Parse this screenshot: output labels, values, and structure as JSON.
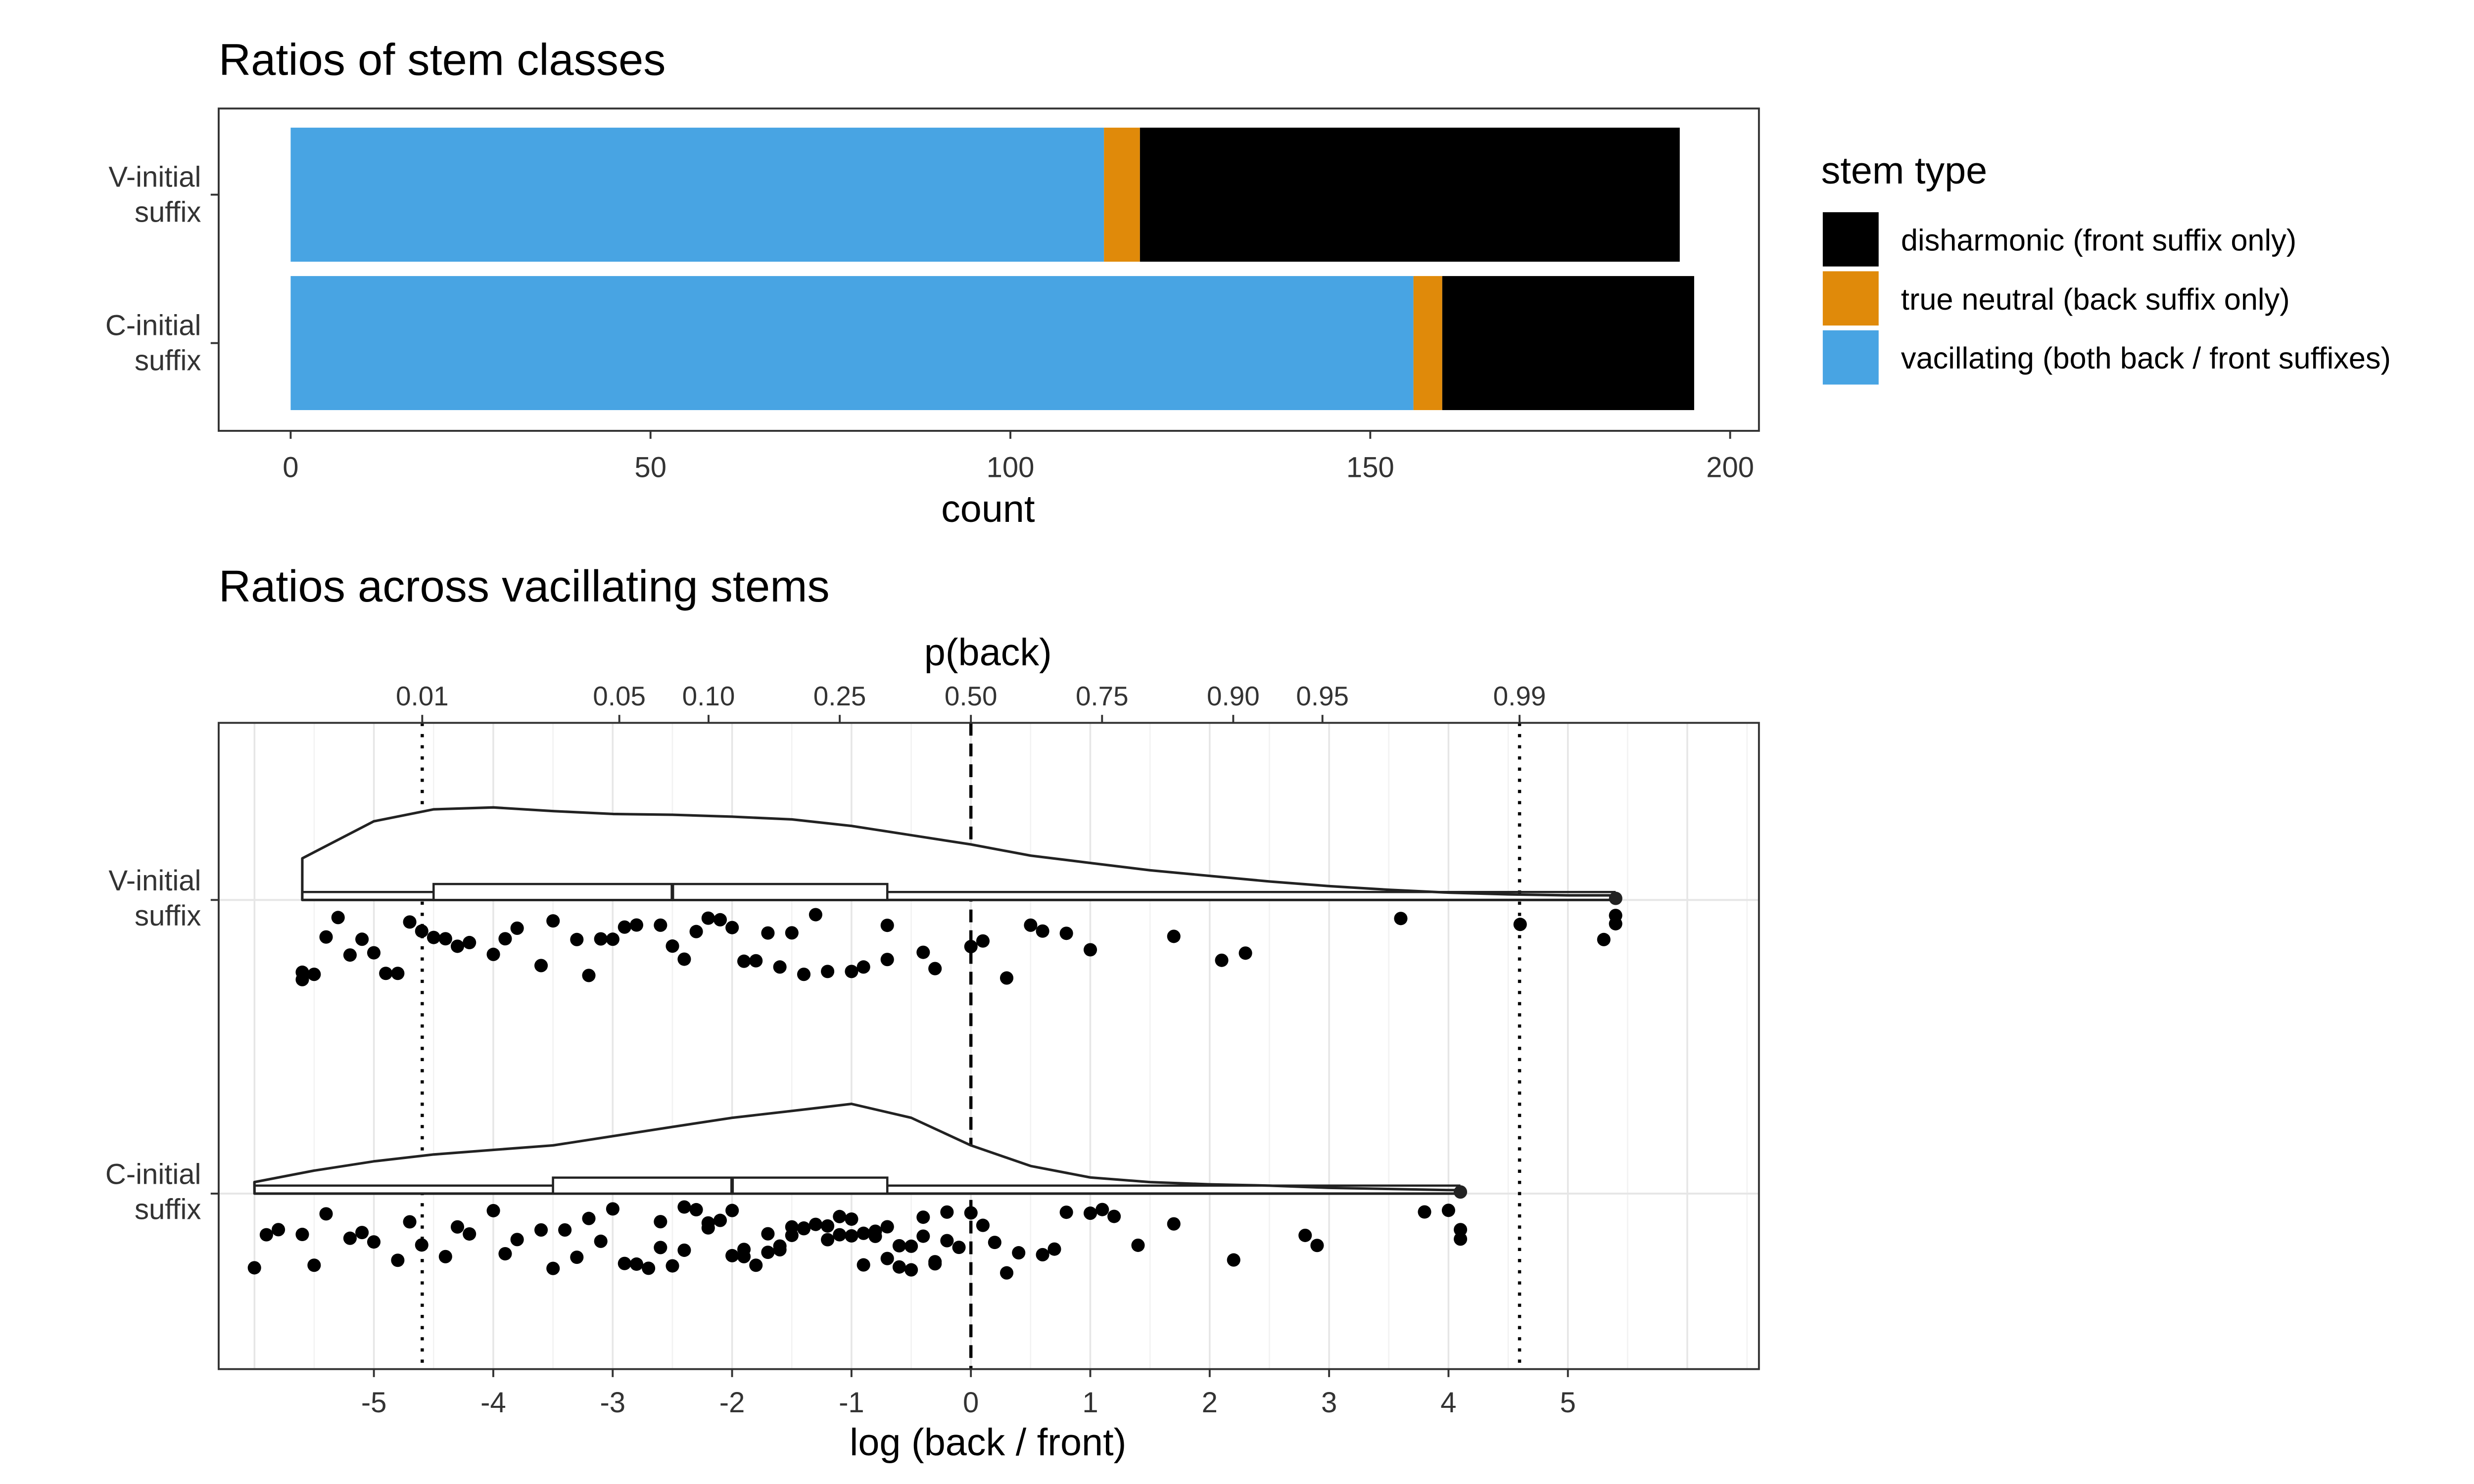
{
  "chart_data": [
    {
      "type": "bar",
      "orientation": "horizontal",
      "stacked": true,
      "title": "Ratios of stem classes",
      "xlabel": "count",
      "ylabel": "",
      "xlim": [
        -10,
        204
      ],
      "x_ticks": [
        0,
        50,
        100,
        150,
        200
      ],
      "categories": [
        "V-initial suffix",
        "C-initial suffix"
      ],
      "series": [
        {
          "name": "vacillating (both back / front suffixes)",
          "color": "#48A4E3",
          "values": [
            113,
            156
          ]
        },
        {
          "name": "true neutral (back suffix only)",
          "color": "#E08A0A",
          "values": [
            5,
            4
          ]
        },
        {
          "name": "disharmonic (front suffix only)",
          "color": "#000000",
          "values": [
            75,
            35
          ]
        }
      ],
      "legend": {
        "title": "stem type",
        "placement": "right",
        "entries": [
          {
            "label": "disharmonic (front suffix only)",
            "color": "#000000"
          },
          {
            "label": "true neutral (back suffix only)",
            "color": "#E08A0A"
          },
          {
            "label": "vacillating (both back / front suffixes)",
            "color": "#48A4E3"
          }
        ]
      },
      "grid": false
    },
    {
      "type": "scatter",
      "subtype": "raincloud",
      "title": "Ratios across vacillating stems",
      "xlabel": "log (back / front)",
      "secondary_xlabel": "p(back)",
      "ylabel": "",
      "xlim": [
        -6.3,
        6.6
      ],
      "x_ticks": [
        -5,
        -4,
        -3,
        -2,
        -1,
        0,
        1,
        2,
        3,
        4,
        5
      ],
      "secondary_x_ticks": [
        "0.01",
        "0.05",
        "0.10",
        "0.25",
        "0.50",
        "0.75",
        "0.90",
        "0.95",
        "0.99"
      ],
      "reference_lines": [
        {
          "p": 0.01,
          "style": "dotted"
        },
        {
          "p": 0.5,
          "style": "dashed"
        },
        {
          "p": 0.99,
          "style": "dotted"
        }
      ],
      "grid": true,
      "groups": [
        {
          "name": "V-initial suffix",
          "box": {
            "min": -5.6,
            "q1": -4.5,
            "median": -2.5,
            "q3": -0.7,
            "max": 5.4
          },
          "density": [
            [
              -5.6,
              0.45
            ],
            [
              -5.0,
              0.85
            ],
            [
              -4.5,
              0.98
            ],
            [
              -4.0,
              1.0
            ],
            [
              -3.5,
              0.96
            ],
            [
              -3.0,
              0.93
            ],
            [
              -2.5,
              0.92
            ],
            [
              -2.0,
              0.9
            ],
            [
              -1.5,
              0.87
            ],
            [
              -1.0,
              0.8
            ],
            [
              -0.5,
              0.7
            ],
            [
              0.0,
              0.6
            ],
            [
              0.5,
              0.48
            ],
            [
              1.0,
              0.4
            ],
            [
              1.5,
              0.32
            ],
            [
              2.0,
              0.26
            ],
            [
              2.5,
              0.2
            ],
            [
              3.0,
              0.15
            ],
            [
              3.5,
              0.11
            ],
            [
              4.0,
              0.08
            ],
            [
              4.5,
              0.06
            ],
            [
              5.0,
              0.05
            ],
            [
              5.4,
              0.05
            ]
          ],
          "points": [
            -5.6,
            -5.5,
            -5.3,
            -5.1,
            -4.9,
            -4.7,
            -4.5,
            -4.3,
            -4.0,
            -3.8,
            -3.5,
            -3.2,
            -3.0,
            -2.8,
            -2.5,
            -2.3,
            -2.1,
            -1.9,
            -1.7,
            -1.5,
            -1.3,
            -1.0,
            -0.7,
            -0.3,
            0.1,
            0.5,
            1.0,
            1.7,
            2.1,
            2.3,
            3.6,
            4.6,
            5.3,
            5.4,
            -5.6,
            -5.4,
            -5.2,
            -5.0,
            -4.8,
            -4.6,
            -4.4,
            -4.2,
            -3.9,
            -3.6,
            -3.3,
            -3.1,
            -2.9,
            -2.6,
            -2.4,
            -2.2,
            -2.0,
            -1.8,
            -1.6,
            -1.4,
            -1.2,
            -0.9,
            -0.7,
            -0.4,
            0.0,
            0.3,
            0.6,
            0.8,
            5.4
          ]
        },
        {
          "name": "C-initial suffix",
          "box": {
            "min": -6.0,
            "q1": -3.5,
            "median": -2.0,
            "q3": -0.7,
            "max": 4.1
          },
          "density": [
            [
              -6.0,
              0.1
            ],
            [
              -5.5,
              0.2
            ],
            [
              -5.0,
              0.28
            ],
            [
              -4.5,
              0.34
            ],
            [
              -4.0,
              0.38
            ],
            [
              -3.5,
              0.42
            ],
            [
              -3.0,
              0.5
            ],
            [
              -2.5,
              0.58
            ],
            [
              -2.0,
              0.66
            ],
            [
              -1.5,
              0.72
            ],
            [
              -1.0,
              0.78
            ],
            [
              -0.5,
              0.66
            ],
            [
              0.0,
              0.42
            ],
            [
              0.5,
              0.24
            ],
            [
              1.0,
              0.14
            ],
            [
              1.5,
              0.1
            ],
            [
              2.0,
              0.08
            ],
            [
              2.5,
              0.07
            ],
            [
              3.0,
              0.05
            ],
            [
              3.5,
              0.04
            ],
            [
              4.0,
              0.03
            ],
            [
              4.1,
              0.03
            ]
          ],
          "points": [
            -6.0,
            -5.8,
            -5.6,
            -5.4,
            -5.2,
            -5.0,
            -4.8,
            -4.6,
            -4.4,
            -4.2,
            -4.0,
            -3.8,
            -3.6,
            -3.4,
            -3.2,
            -3.0,
            -2.8,
            -2.6,
            -2.5,
            -2.4,
            -2.3,
            -2.2,
            -2.1,
            -2.0,
            -1.9,
            -1.8,
            -1.7,
            -1.6,
            -1.5,
            -1.4,
            -1.3,
            -1.2,
            -1.1,
            -1.0,
            -0.9,
            -0.8,
            -0.7,
            -0.6,
            -0.5,
            -0.4,
            -0.3,
            -0.2,
            -0.1,
            0.0,
            0.2,
            0.4,
            0.6,
            0.8,
            1.0,
            1.2,
            1.4,
            1.7,
            2.2,
            2.8,
            2.9,
            3.8,
            4.0,
            4.1,
            -5.9,
            -5.5,
            -5.1,
            -4.7,
            -4.3,
            -3.9,
            -3.5,
            -3.3,
            -2.9,
            -2.7,
            -2.4,
            -2.2,
            -1.9,
            -1.7,
            -1.5,
            -1.2,
            -1.0,
            -0.8,
            -0.6,
            -0.4,
            -0.2,
            0.1,
            0.3,
            0.7,
            1.1,
            4.1,
            -3.1,
            -2.6,
            -1.6,
            -1.1,
            -0.9,
            -0.7,
            -0.5,
            -0.3,
            -2.0,
            -1.4
          ]
        }
      ]
    }
  ]
}
